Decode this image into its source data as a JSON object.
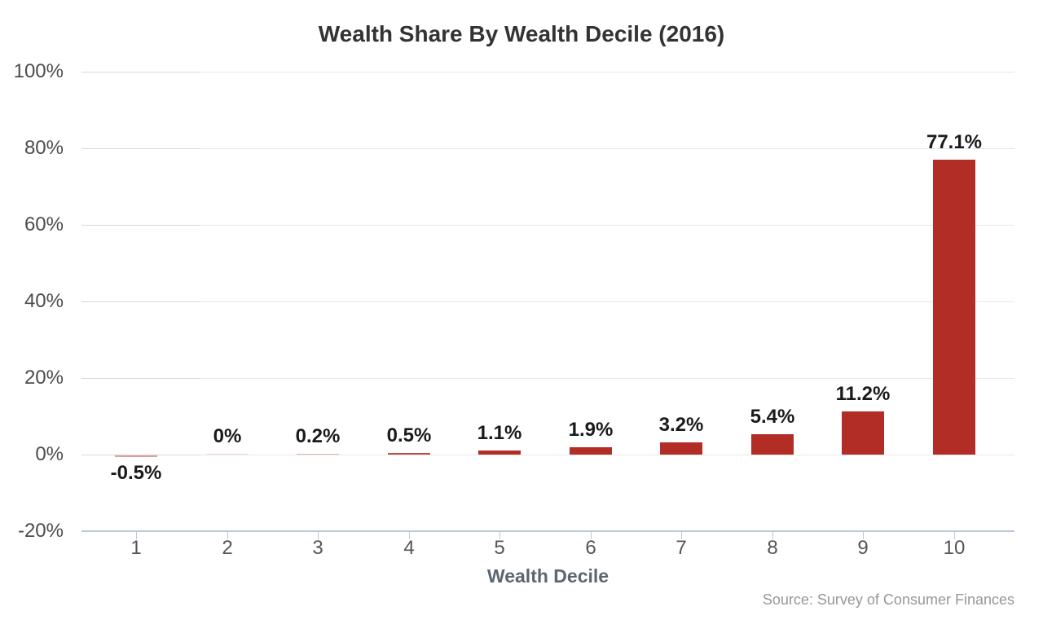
{
  "chart_data": {
    "type": "bar",
    "title": "Wealth Share By Wealth Decile (2016)",
    "categories": [
      "1",
      "2",
      "3",
      "4",
      "5",
      "6",
      "7",
      "8",
      "9",
      "10"
    ],
    "values": [
      -0.5,
      0,
      0.2,
      0.5,
      1.1,
      1.9,
      3.2,
      5.4,
      11.2,
      77.1
    ],
    "bar_labels": [
      "-0.5%",
      "0%",
      "0.2%",
      "0.5%",
      "1.1%",
      "1.9%",
      "3.2%",
      "5.4%",
      "11.2%",
      "77.1%"
    ],
    "xlabel": "Wealth Decile",
    "ylabel": "",
    "ylim": [
      -20,
      100
    ],
    "yticks": [
      100,
      80,
      60,
      40,
      20,
      0,
      -20
    ],
    "ytick_labels": [
      "100%",
      "80%",
      "60%",
      "40%",
      "20%",
      "0%",
      "-20%"
    ],
    "grid": true,
    "legend": null,
    "source": "Source: Survey of Consumer Finances",
    "colors": {
      "bar": "#b22d26",
      "axis_line": "#bcc8dc",
      "gridline": "#e7e7e7",
      "gridline_left_segment": "#d8d8d8",
      "title_text": "#333333",
      "ytick_text": "#4c4c4c",
      "xtick_text": "#555555",
      "bar_label_text": "#1a1a1a",
      "axis_title_text": "#5c6670",
      "source_text": "#979797"
    }
  }
}
